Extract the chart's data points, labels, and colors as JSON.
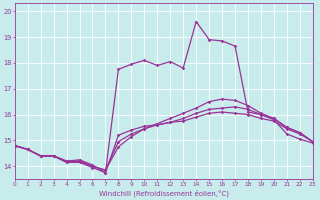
{
  "xlabel": "Windchill (Refroidissement éolien,°C)",
  "bg_color": "#c8ecec",
  "line_color": "#993399",
  "grid_color": "#ffffff",
  "xmin": 0,
  "xmax": 23,
  "ymin": 13.5,
  "ymax": 20.3,
  "yticks": [
    14,
    15,
    16,
    17,
    18,
    19,
    20
  ],
  "xticks": [
    0,
    1,
    2,
    3,
    4,
    5,
    6,
    7,
    8,
    9,
    10,
    11,
    12,
    13,
    14,
    15,
    16,
    17,
    18,
    19,
    20,
    21,
    22,
    23
  ],
  "line1_x": [
    0,
    1,
    2,
    3,
    4,
    5,
    6,
    7,
    8,
    9,
    10,
    11,
    12,
    13,
    14,
    15,
    16,
    17,
    18,
    19,
    20,
    21,
    22,
    23
  ],
  "line1_y": [
    14.8,
    14.65,
    14.4,
    14.4,
    14.15,
    14.15,
    13.95,
    13.75,
    15.2,
    15.4,
    15.55,
    15.6,
    15.7,
    15.75,
    15.9,
    16.05,
    16.1,
    16.05,
    16.0,
    15.85,
    15.75,
    15.45,
    15.25,
    14.95
  ],
  "line2_x": [
    0,
    1,
    2,
    3,
    4,
    5,
    6,
    7,
    8,
    9,
    10,
    11,
    12,
    13,
    14,
    15,
    16,
    17,
    18,
    19,
    20,
    21,
    22,
    23
  ],
  "line2_y": [
    14.8,
    14.65,
    14.4,
    14.4,
    14.15,
    14.2,
    14.0,
    13.85,
    14.95,
    15.25,
    15.45,
    15.6,
    15.7,
    15.85,
    16.05,
    16.2,
    16.25,
    16.3,
    16.2,
    16.0,
    15.85,
    15.5,
    15.3,
    14.95
  ],
  "line3_x": [
    0,
    1,
    2,
    3,
    4,
    5,
    6,
    7,
    8,
    9,
    10,
    11,
    12,
    13,
    14,
    15,
    16,
    17,
    18,
    19,
    20,
    21,
    22,
    23
  ],
  "line3_y": [
    14.8,
    14.65,
    14.4,
    14.4,
    14.2,
    14.2,
    14.0,
    13.85,
    14.75,
    15.15,
    15.45,
    15.65,
    15.85,
    16.05,
    16.25,
    16.5,
    16.6,
    16.55,
    16.35,
    16.05,
    15.85,
    15.5,
    15.3,
    14.95
  ],
  "line4_x": [
    0,
    1,
    2,
    3,
    4,
    5,
    6,
    7,
    8,
    9,
    10,
    11,
    12,
    13,
    14,
    15,
    16,
    17,
    18,
    19,
    20,
    21,
    22,
    23
  ],
  "line4_y": [
    14.8,
    14.65,
    14.4,
    14.4,
    14.2,
    14.25,
    14.05,
    13.75,
    17.75,
    17.95,
    18.1,
    17.9,
    18.05,
    17.8,
    19.6,
    18.9,
    18.85,
    18.65,
    16.1,
    16.0,
    15.8,
    15.25,
    15.05,
    14.9
  ]
}
